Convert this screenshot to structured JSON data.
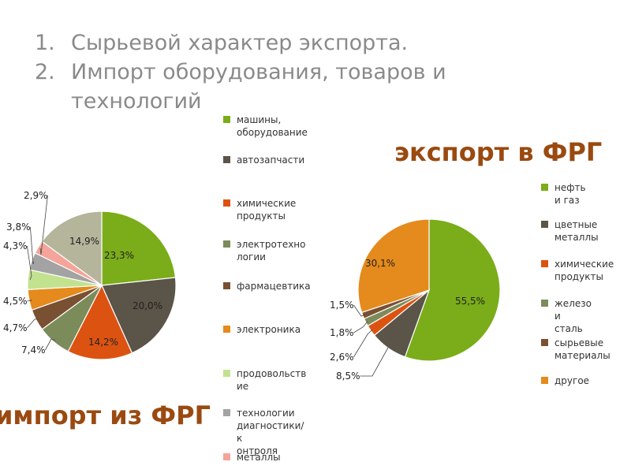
{
  "slide": {
    "bullets": [
      {
        "num": "1.",
        "text": "Сырьевой характер экспорта."
      },
      {
        "num": "2.",
        "text": "Импорт  оборудования, товаров и\nтехнологий"
      }
    ],
    "import_title": "импорт из  ФРГ",
    "export_title": "экспорт в ФРГ"
  },
  "chart_data": [
    {
      "type": "pie",
      "title": "импорт из  ФРГ",
      "categories": [
        "машины,\nоборудование",
        "автозапчасти",
        "химические\nпродукты",
        "электротехно\nлогии",
        "фармацевтика",
        "электроника",
        "продовольств\nие",
        "технологии\nдиагностики/к\nонтроля",
        "металлы",
        ""
      ],
      "values": [
        23.3,
        20.0,
        14.2,
        7.4,
        4.7,
        4.5,
        4.3,
        3.8,
        2.9,
        14.9
      ],
      "labels": [
        "23,3%",
        "20,0%",
        "14,2%",
        "7,4%",
        "4,7%",
        "4,5%",
        "4,3%",
        "3,8%",
        "2,9%",
        "14,9%"
      ],
      "colors": [
        "#7aad19",
        "#5b5448",
        "#dc5311",
        "#7c8b5a",
        "#7a5032",
        "#e58a1c",
        "#c3e28f",
        "#a3a3a3",
        "#f4a49a",
        "#b5b59b"
      ],
      "legend_position": "right"
    },
    {
      "type": "pie",
      "title": "экспорт в ФРГ",
      "categories": [
        "нефть  и газ",
        "цветные\nметаллы",
        "химические\nпродукты",
        "железо  и\nсталь",
        "сырьевые\nматериалы",
        "другое"
      ],
      "values": [
        55.5,
        8.5,
        2.6,
        1.8,
        1.5,
        30.1
      ],
      "labels": [
        "55,5%",
        "8,5%",
        "2,6%",
        "1,8%",
        "1,5%",
        "30,1%"
      ],
      "colors": [
        "#7aad19",
        "#5b5448",
        "#dc5311",
        "#7c8b5a",
        "#7a5032",
        "#e58a1c"
      ],
      "legend_position": "right"
    }
  ]
}
